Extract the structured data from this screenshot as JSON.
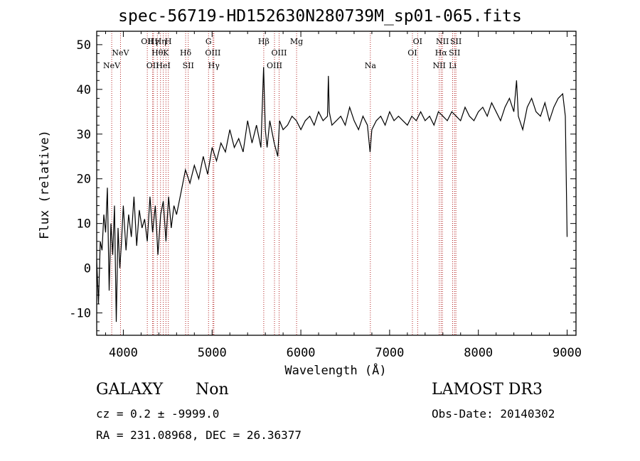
{
  "title": "spec-56719-HD152630N280739M_sp01-065.fits",
  "footer": {
    "object_class": "GALAXY",
    "object_subclass": "Non",
    "survey": "LAMOST DR3",
    "cz_text": "cz = 0.2 ± -9999.0",
    "obs_date_text": "Obs-Date: 20140302",
    "radec_text": "RA = 231.08968, DEC =  26.36377"
  },
  "chart_data": {
    "type": "line",
    "title": "spec-56719-HD152630N280739M_sp01-065.fits",
    "xlabel": "Wavelength (Å)",
    "ylabel": "Flux (relative)",
    "xlim": [
      3700,
      9100
    ],
    "ylim": [
      -15,
      53
    ],
    "xticks": [
      4000,
      5000,
      6000,
      7000,
      8000,
      9000
    ],
    "yticks": [
      -10,
      0,
      10,
      20,
      30,
      40,
      50
    ],
    "grid": false,
    "line_color": "#000000",
    "marker_color": "#b22222",
    "series": [
      {
        "x": [
          3700,
          3720,
          3740,
          3760,
          3780,
          3800,
          3820,
          3840,
          3860,
          3880,
          3900,
          3920,
          3940,
          3960,
          3980,
          4000,
          4030,
          4060,
          4090,
          4120,
          4150,
          4180,
          4210,
          4240,
          4270,
          4300,
          4330,
          4360,
          4390,
          4420,
          4450,
          4480,
          4510,
          4540,
          4570,
          4600,
          4650,
          4700,
          4750,
          4800,
          4850,
          4900,
          4950,
          5000,
          5050,
          5100,
          5150,
          5200,
          5250,
          5300,
          5350,
          5400,
          5450,
          5500,
          5550,
          5580,
          5600,
          5620,
          5650,
          5700,
          5740,
          5760,
          5800,
          5850,
          5900,
          5950,
          6000,
          6050,
          6100,
          6150,
          6200,
          6250,
          6300,
          6310,
          6320,
          6350,
          6400,
          6450,
          6500,
          6550,
          6600,
          6650,
          6700,
          6750,
          6780,
          6800,
          6850,
          6900,
          6950,
          7000,
          7050,
          7100,
          7150,
          7200,
          7250,
          7300,
          7350,
          7400,
          7450,
          7500,
          7550,
          7600,
          7650,
          7700,
          7750,
          7800,
          7850,
          7900,
          7950,
          8000,
          8050,
          8100,
          8150,
          8200,
          8250,
          8300,
          8350,
          8400,
          8430,
          8450,
          8500,
          8550,
          8600,
          8650,
          8700,
          8750,
          8800,
          8850,
          8900,
          8950,
          8980,
          9000
        ],
        "y": [
          2,
          -8,
          6,
          4,
          12,
          8,
          18,
          -5,
          10,
          3,
          14,
          -12,
          9,
          0,
          6,
          14,
          4,
          12,
          7,
          16,
          5,
          13,
          9,
          11,
          6,
          16,
          8,
          14,
          3,
          12,
          15,
          6,
          16,
          9,
          14,
          12,
          17,
          22,
          19,
          23,
          20,
          25,
          21,
          27,
          24,
          28,
          26,
          31,
          27,
          29,
          26,
          33,
          28,
          32,
          27,
          45,
          31,
          27,
          33,
          28,
          25,
          33,
          31,
          32,
          34,
          33,
          31,
          33,
          34,
          32,
          35,
          33,
          34,
          43,
          35,
          32,
          33,
          34,
          32,
          36,
          33,
          31,
          34,
          32,
          26,
          31,
          33,
          34,
          32,
          35,
          33,
          34,
          33,
          32,
          34,
          33,
          35,
          33,
          34,
          32,
          35,
          34,
          33,
          35,
          34,
          33,
          36,
          34,
          33,
          35,
          36,
          34,
          37,
          35,
          33,
          36,
          38,
          35,
          42,
          34,
          31,
          36,
          38,
          35,
          34,
          37,
          33,
          36,
          38,
          39,
          34,
          7
        ]
      }
    ],
    "line_markers": [
      {
        "x": 3869,
        "label": "NeV",
        "row": 2
      },
      {
        "x": 3968,
        "label": "NeV",
        "row": 1
      },
      {
        "x": 4270,
        "label": "OII",
        "row": 0
      },
      {
        "x": 4330,
        "label": "OII",
        "row": 2
      },
      {
        "x": 4340,
        "label": "Hγ",
        "row": 0
      },
      {
        "x": 4383,
        "label": "Hθ",
        "row": 1
      },
      {
        "x": 4419,
        "label": "Hη",
        "row": 0
      },
      {
        "x": 4450,
        "label": "HeI",
        "row": 2
      },
      {
        "x": 4480,
        "label": "K",
        "row": 1
      },
      {
        "x": 4507,
        "label": "H",
        "row": 0
      },
      {
        "x": 4702,
        "label": "Hδ",
        "row": 1
      },
      {
        "x": 4731,
        "label": "SII",
        "row": 2
      },
      {
        "x": 4960,
        "label": "G",
        "row": 0
      },
      {
        "x": 5009,
        "label": "OIII",
        "row": 1
      },
      {
        "x": 5020,
        "label": "Hγ",
        "row": 2
      },
      {
        "x": 5582,
        "label": "Hβ",
        "row": 0
      },
      {
        "x": 5703,
        "label": "OIII",
        "row": 2
      },
      {
        "x": 5755,
        "label": "OIII",
        "row": 1
      },
      {
        "x": 5952,
        "label": "Mg",
        "row": 0
      },
      {
        "x": 6783,
        "label": "Na",
        "row": 2
      },
      {
        "x": 7257,
        "label": "OI",
        "row": 1
      },
      {
        "x": 7316,
        "label": "OI",
        "row": 0
      },
      {
        "x": 7559,
        "label": "NII",
        "row": 2
      },
      {
        "x": 7580,
        "label": "Hα",
        "row": 1
      },
      {
        "x": 7595,
        "label": "NII",
        "row": 0
      },
      {
        "x": 7710,
        "label": "Li",
        "row": 2
      },
      {
        "x": 7732,
        "label": "SII",
        "row": 1
      },
      {
        "x": 7747,
        "label": "SII",
        "row": 0
      }
    ]
  }
}
